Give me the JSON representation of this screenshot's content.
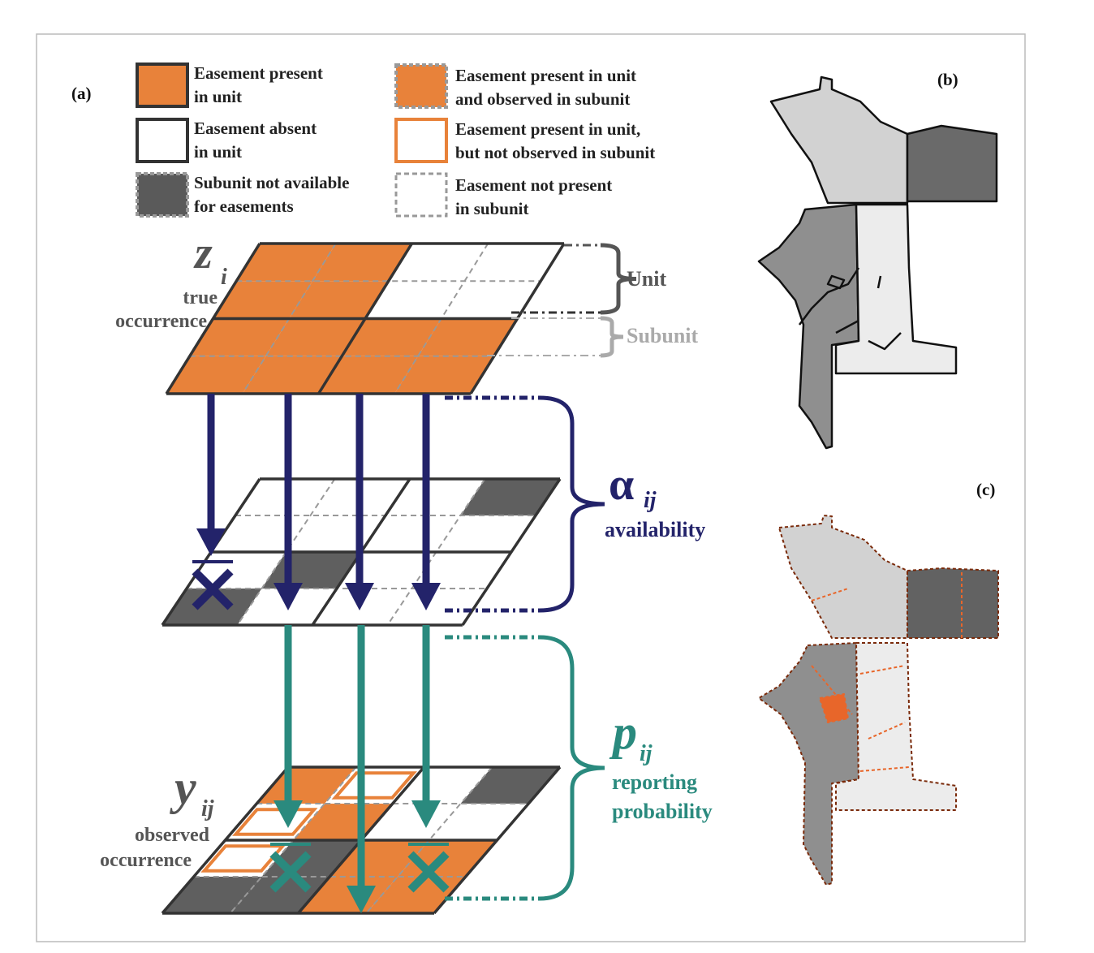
{
  "panel_a": {
    "label": "(a)",
    "legend": [
      {
        "lines": [
          "Easement present",
          "in unit"
        ]
      },
      {
        "lines": [
          "Easement absent",
          "in unit"
        ]
      },
      {
        "lines": [
          "Subunit not available",
          "for easements"
        ]
      },
      {
        "lines": [
          "Easement present in unit",
          "and observed in subunit"
        ]
      },
      {
        "lines": [
          "Easement present in unit,",
          "but not observed in subunit"
        ]
      },
      {
        "lines": [
          "Easement not present",
          "in subunit"
        ]
      }
    ],
    "z": {
      "symbol": "z",
      "subscript": "i",
      "lines": [
        "true",
        "occurrence"
      ]
    },
    "unit": "Unit",
    "subunit": "Subunit",
    "alpha": {
      "symbol": "α",
      "subscript": "ij",
      "label": "availability"
    },
    "p": {
      "symbol": "p",
      "subscript": "ij",
      "lines": [
        "reporting",
        "probability"
      ]
    },
    "y": {
      "symbol": "y",
      "subscript": "ij",
      "lines": [
        "observed",
        "occurrence"
      ]
    }
  },
  "panel_b": {
    "label": "(b)"
  },
  "panel_c": {
    "label": "(c)"
  }
}
